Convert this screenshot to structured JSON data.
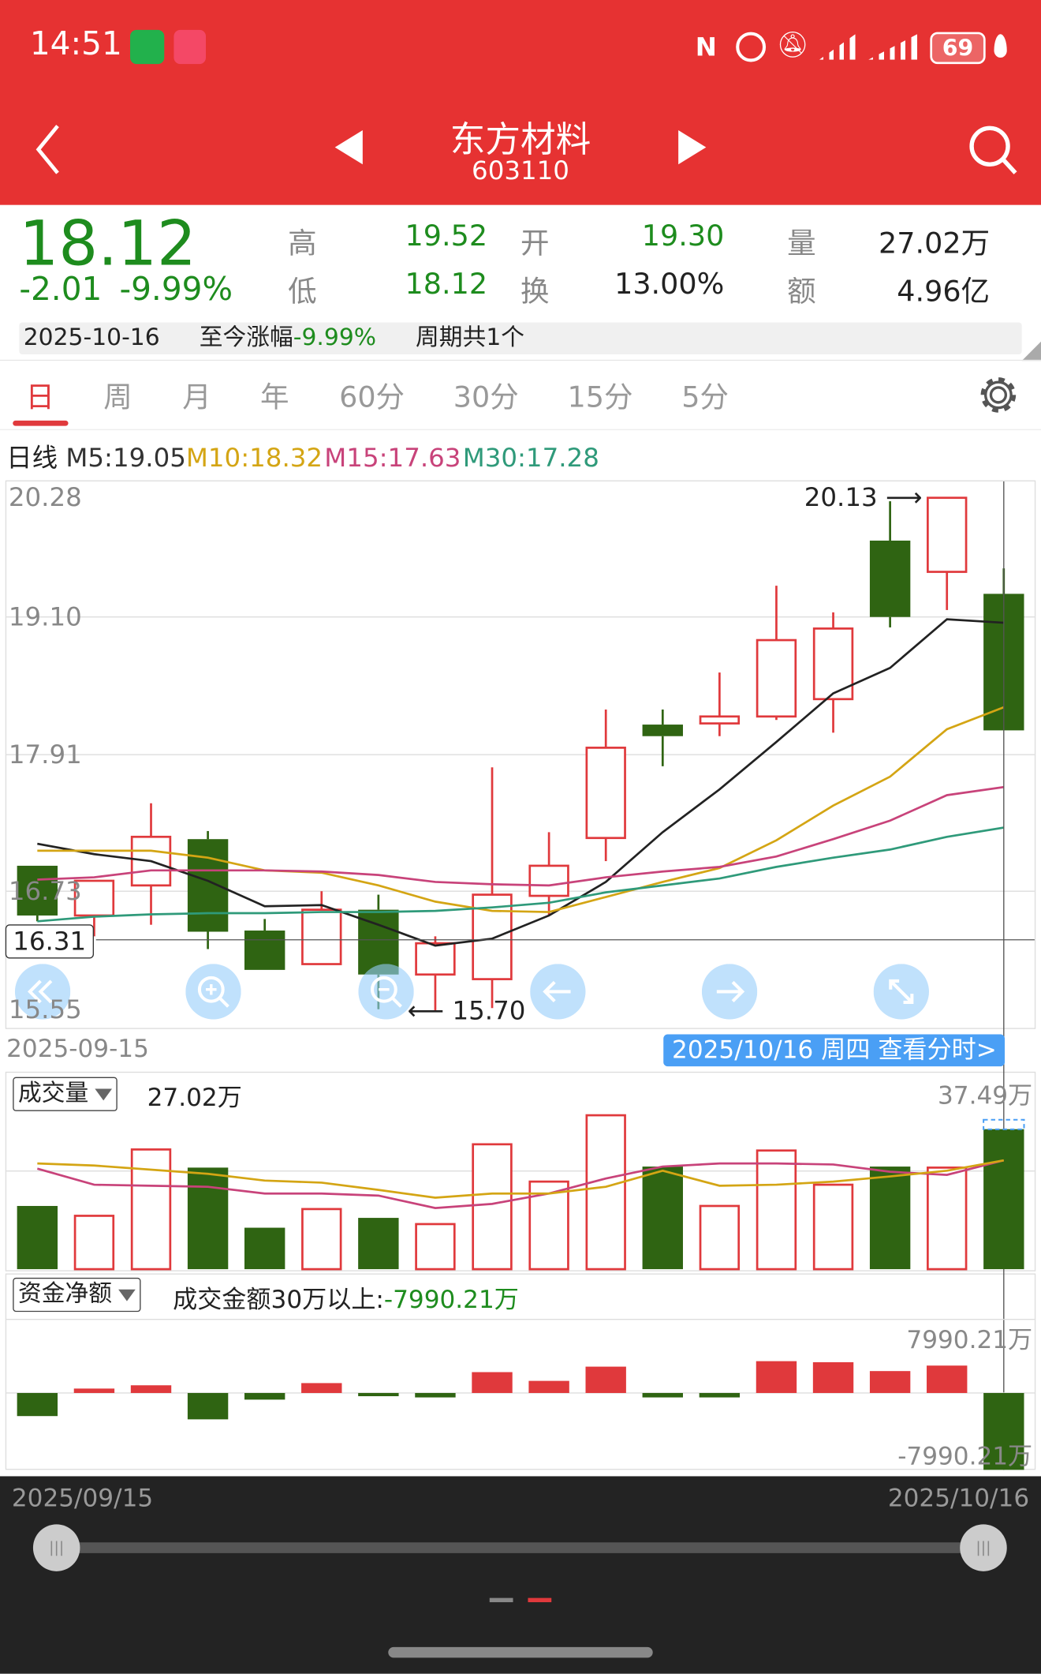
{
  "status_bar": {
    "time": "14:51",
    "battery": "69",
    "icons": [
      "wechat-icon",
      "missed-call-icon",
      "nfc-icon",
      "alarm-icon",
      "mute-icon",
      "signal-icon",
      "signal-icon",
      "battery-icon",
      "leaf-icon"
    ]
  },
  "header": {
    "title": "东方材料",
    "code": "603110"
  },
  "quote": {
    "price": "18.12",
    "change": "-2.01",
    "change_pct": "-9.99%",
    "high_label": "高",
    "high": "19.52",
    "open_label": "开",
    "open": "19.30",
    "volume_label": "量",
    "volume": "27.02万",
    "low_label": "低",
    "low": "18.12",
    "turnover_label": "换",
    "turnover": "13.00%",
    "amount_label": "额",
    "amount": "4.96亿"
  },
  "period_bar": {
    "date": "2025-10-16",
    "gain_label": "至今涨幅",
    "gain": "-9.99%",
    "cycles": "周期共1个"
  },
  "tabs": [
    {
      "label": "日",
      "active": true
    },
    {
      "label": "周"
    },
    {
      "label": "月"
    },
    {
      "label": "年"
    },
    {
      "label": "60分"
    },
    {
      "label": "30分"
    },
    {
      "label": "15分"
    },
    {
      "label": "5分"
    }
  ],
  "ma_legend": {
    "prefix": "日线",
    "m5": "M5:19.05",
    "m10": "M10:18.32",
    "m15": "M15:17.63",
    "m30": "M30:17.28"
  },
  "colors": {
    "up": "#e0393c",
    "down": "#2f6412",
    "m5": "#222222",
    "m10": "#d4a514",
    "m15": "#c8437a",
    "m30": "#2f9a7a",
    "header": "#e63232",
    "price_green": "#1e8c1e",
    "accent_blue": "#4a9ff5"
  },
  "chart_data": [
    {
      "type": "candlestick",
      "y_ticks": [
        "20.28",
        "19.10",
        "17.91",
        "16.73",
        "15.55"
      ],
      "ylim": [
        15.55,
        20.28
      ],
      "crosshair_price": "16.31",
      "max_label": "20.13",
      "min_label": "15.70",
      "start_date": "2025-09-15",
      "selected_label": "2025/10/16 周四 查看分时>",
      "candles": [
        {
          "o": 16.95,
          "h": 16.95,
          "l": 16.47,
          "c": 16.52
        },
        {
          "o": 16.52,
          "h": 16.82,
          "l": 16.34,
          "c": 16.82
        },
        {
          "o": 16.78,
          "h": 17.49,
          "l": 16.44,
          "c": 17.2
        },
        {
          "o": 17.18,
          "h": 17.25,
          "l": 16.23,
          "c": 16.38
        },
        {
          "o": 16.39,
          "h": 16.49,
          "l": 16.05,
          "c": 16.05
        },
        {
          "o": 16.1,
          "h": 16.73,
          "l": 16.1,
          "c": 16.57
        },
        {
          "o": 16.57,
          "h": 16.7,
          "l": 15.71,
          "c": 16.01
        },
        {
          "o": 16.01,
          "h": 16.34,
          "l": 15.7,
          "c": 16.28
        },
        {
          "o": 15.97,
          "h": 17.8,
          "l": 15.72,
          "c": 16.7
        },
        {
          "o": 16.69,
          "h": 17.24,
          "l": 16.52,
          "c": 16.95
        },
        {
          "o": 17.19,
          "h": 18.3,
          "l": 16.99,
          "c": 17.97
        },
        {
          "o": 18.17,
          "h": 18.3,
          "l": 17.81,
          "c": 18.07
        },
        {
          "o": 18.18,
          "h": 18.62,
          "l": 18.07,
          "c": 18.24
        },
        {
          "o": 18.24,
          "h": 19.37,
          "l": 18.21,
          "c": 18.9
        },
        {
          "o": 18.39,
          "h": 19.14,
          "l": 18.1,
          "c": 19.0
        },
        {
          "o": 19.76,
          "h": 20.1,
          "l": 19.01,
          "c": 19.1
        },
        {
          "o": 19.49,
          "h": 20.13,
          "l": 19.16,
          "c": 20.13
        },
        {
          "o": 19.3,
          "h": 19.52,
          "l": 18.12,
          "c": 18.12
        }
      ],
      "series": [
        {
          "name": "M5",
          "values": [
            17.14,
            17.05,
            16.99,
            16.82,
            16.6,
            16.61,
            16.44,
            16.26,
            16.32,
            16.52,
            16.81,
            17.24,
            17.61,
            18.02,
            18.44,
            18.66,
            19.08,
            19.05
          ]
        },
        {
          "name": "M10",
          "values": [
            17.08,
            17.08,
            17.08,
            17.02,
            16.91,
            16.89,
            16.78,
            16.64,
            16.56,
            16.55,
            16.68,
            16.81,
            16.93,
            17.17,
            17.47,
            17.72,
            18.13,
            18.32
          ]
        },
        {
          "name": "M15",
          "values": [
            16.83,
            16.85,
            16.91,
            16.91,
            16.91,
            16.9,
            16.87,
            16.81,
            16.79,
            16.78,
            16.85,
            16.9,
            16.94,
            17.03,
            17.18,
            17.34,
            17.56,
            17.63
          ]
        },
        {
          "name": "M30",
          "values": [
            16.47,
            16.51,
            16.53,
            16.54,
            16.54,
            16.55,
            16.55,
            16.56,
            16.59,
            16.63,
            16.72,
            16.78,
            16.84,
            16.94,
            17.02,
            17.09,
            17.2,
            17.28
          ]
        }
      ]
    },
    {
      "type": "bar",
      "selector_label": "成交量",
      "current": "27.02万",
      "max_label": "37.49万",
      "ylim": [
        0,
        37.49
      ],
      "values": [
        12.2,
        10.3,
        23.1,
        19.6,
        8.0,
        11.6,
        9.9,
        8.7,
        24.1,
        16.9,
        29.7,
        19.8,
        12.2,
        22.9,
        16.3,
        19.8,
        19.6,
        27.02
      ],
      "lines": [
        {
          "values": [
            19.4,
            16.3,
            16.1,
            15.9,
            14.6,
            14.6,
            14.2,
            11.8,
            12.6,
            14.6,
            17.5,
            19.8,
            20.4,
            20.4,
            20.2,
            18.8,
            18.2,
            21.0
          ]
        },
        {
          "values": [
            20.4,
            20.0,
            19.2,
            18.4,
            17.1,
            16.7,
            15.3,
            13.8,
            14.6,
            14.6,
            15.9,
            19.0,
            16.1,
            16.3,
            16.9,
            17.9,
            19.0,
            21.0
          ]
        }
      ]
    },
    {
      "type": "bar",
      "selector_label": "资金净额",
      "caption": "成交金额30万以上:",
      "current": "-7990.21万",
      "max_label": "7990.21万",
      "min_label": "-7990.21万",
      "ylim": [
        -7990.21,
        7990.21
      ],
      "values": [
        -2400,
        460,
        800,
        -2740,
        -690,
        1030,
        -230,
        -460,
        2170,
        1260,
        2740,
        -460,
        -460,
        3310,
        3200,
        2280,
        2850,
        -7990.21
      ]
    }
  ],
  "range_slider": {
    "start": "2025/09/15",
    "end": "2025/10/16"
  }
}
